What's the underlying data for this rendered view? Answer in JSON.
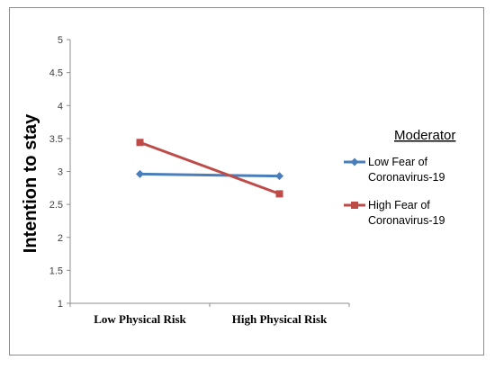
{
  "chart_data": {
    "type": "line",
    "categories": [
      "Low Physical Risk",
      "High Physical Risk"
    ],
    "series": [
      {
        "name": "Low Fear of Coronavirus-19",
        "values": [
          2.96,
          2.93
        ],
        "color": "#4a7ebb",
        "marker": "diamond"
      },
      {
        "name": "High Fear of Coronavirus-19",
        "values": [
          3.44,
          2.66
        ],
        "color": "#be4b48",
        "marker": "square"
      }
    ],
    "ylabel": "Intention to stay",
    "ylim": [
      1,
      5
    ],
    "yticks": [
      "1",
      "1.5",
      "2",
      "2.5",
      "3",
      "3.5",
      "4",
      "4.5",
      "5"
    ],
    "legend_title": "Moderator",
    "legend_lines": [
      [
        "Low Fear of",
        "Coronavirus-19"
      ],
      [
        "High Fear of",
        "Coronavirus-19"
      ]
    ],
    "legend_position": "right",
    "grid": false
  }
}
